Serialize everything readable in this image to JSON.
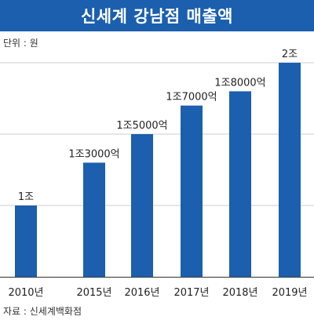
{
  "header": {
    "title": "신세계 강남점 매출액"
  },
  "unit_note": "단위 : 원",
  "source_note": "자료 : 신세계백화점",
  "chart_data": {
    "type": "bar",
    "title": "신세계 강남점 매출액",
    "xlabel": "",
    "ylabel": "",
    "categories": [
      "2010년",
      "2015년",
      "2016년",
      "2017년",
      "2018년",
      "2019년"
    ],
    "values": [
      1.0,
      1.3,
      1.5,
      1.7,
      1.8,
      2.0
    ],
    "value_labels": [
      "1조",
      "1조3000억",
      "1조5000억",
      "1조7000억",
      "1조8000억",
      "2조"
    ],
    "ylim": [
      0.5,
      2.0
    ],
    "grid": true,
    "bar_color": "#1b5fae",
    "grid_color": "#cccccc"
  }
}
